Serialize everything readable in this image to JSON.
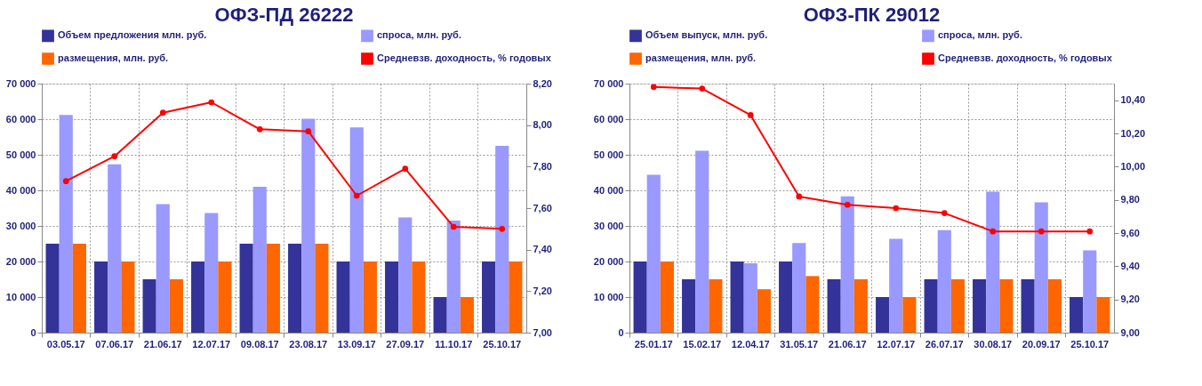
{
  "chart_data": [
    {
      "type": "bar",
      "title": "ОФЗ-ПД 26222",
      "categories": [
        "03.05.17",
        "07.06.17",
        "21.06.17",
        "12.07.17",
        "09.08.17",
        "23.08.17",
        "13.09.17",
        "27.09.17",
        "11.10.17",
        "25.10.17"
      ],
      "series": [
        {
          "name": "Объем предложения млн. руб.",
          "color": "#333399",
          "values": [
            25000,
            20000,
            15000,
            20000,
            25000,
            25000,
            20000,
            20000,
            10000,
            20000
          ]
        },
        {
          "name": "спроса, млн. руб.",
          "color": "#9999ff",
          "values": [
            61200,
            47300,
            36100,
            33600,
            41000,
            60100,
            57700,
            32400,
            31500,
            52500
          ]
        },
        {
          "name": "размещения, млн. руб.",
          "color": "#ff6600",
          "values": [
            25000,
            20000,
            15000,
            20000,
            25000,
            25000,
            20000,
            20000,
            10000,
            20000
          ]
        },
        {
          "name": "Средневзв. доходность, % годовых",
          "color": "#ff0000",
          "type": "line",
          "axis": "y2",
          "marker": "circle",
          "values": [
            7.73,
            7.85,
            8.06,
            8.11,
            7.98,
            7.97,
            7.66,
            7.79,
            7.51,
            7.5
          ]
        }
      ],
      "ylim": [
        0,
        70000
      ],
      "yticks": [
        0,
        {
          "value": 10000,
          "label": "10 000"
        },
        {
          "value": 20000,
          "label": "20 000"
        },
        {
          "value": 30000,
          "label": "30 000"
        },
        {
          "value": 40000,
          "label": "40 000"
        },
        {
          "value": 50000,
          "label": "50 000"
        },
        {
          "value": 60000,
          "label": "60 000"
        },
        {
          "value": 70000,
          "label": "70 000"
        }
      ],
      "y2lim": [
        7.0,
        8.2
      ],
      "y2ticks": [
        {
          "value": 7.0,
          "label": "7,00"
        },
        {
          "value": 7.2,
          "label": "7,20"
        },
        {
          "value": 7.4,
          "label": "7,40"
        },
        {
          "value": 7.6,
          "label": "7,60"
        },
        {
          "value": 7.8,
          "label": "7,80"
        },
        {
          "value": 8.0,
          "label": "8,00"
        },
        {
          "value": 8.2,
          "label": "8,20"
        }
      ],
      "grid": true,
      "legend": "top"
    },
    {
      "type": "bar",
      "title": "ОФЗ-ПК 29012",
      "categories": [
        "25.01.17",
        "15.02.17",
        "12.04.17",
        "31.05.17",
        "21.06.17",
        "12.07.17",
        "26.07.17",
        "30.08.17",
        "20.09.17",
        "25.10.17"
      ],
      "series": [
        {
          "name": "Объем выпуск, млн. руб.",
          "color": "#333399",
          "values": [
            20000,
            15000,
            20000,
            20000,
            15000,
            10000,
            15000,
            15000,
            15000,
            10000
          ]
        },
        {
          "name": "спроса, млн. руб.",
          "color": "#9999ff",
          "values": [
            44400,
            51100,
            19500,
            25200,
            38300,
            26400,
            28800,
            39600,
            36600,
            23100
          ]
        },
        {
          "name": "размещения, млн. руб.",
          "color": "#ff6600",
          "values": [
            20000,
            15000,
            12200,
            15900,
            15000,
            10000,
            15000,
            15000,
            15000,
            10000
          ]
        },
        {
          "name": "Средневзв. доходность, % годовых",
          "color": "#ff0000",
          "type": "line",
          "axis": "y2",
          "marker": "circle",
          "values": [
            10.48,
            10.47,
            10.31,
            9.82,
            9.77,
            9.75,
            9.72,
            9.61,
            9.61,
            9.61
          ]
        }
      ],
      "ylim": [
        0,
        70000
      ],
      "yticks": [
        0,
        {
          "value": 10000,
          "label": "10 000"
        },
        {
          "value": 20000,
          "label": "20 000"
        },
        {
          "value": 30000,
          "label": "30 000"
        },
        {
          "value": 40000,
          "label": "40 000"
        },
        {
          "value": 50000,
          "label": "50 000"
        },
        {
          "value": 60000,
          "label": "60 000"
        },
        {
          "value": 70000,
          "label": "70 000"
        }
      ],
      "y2lim": [
        9.0,
        10.5
      ],
      "y2ticks": [
        {
          "value": 9.0,
          "label": "9,00"
        },
        {
          "value": 9.2,
          "label": "9,20"
        },
        {
          "value": 9.4,
          "label": "9,40"
        },
        {
          "value": 9.6,
          "label": "9,60"
        },
        {
          "value": 9.8,
          "label": "9,80"
        },
        {
          "value": 10.0,
          "label": "10,00"
        },
        {
          "value": 10.2,
          "label": "10,20"
        },
        {
          "value": 10.4,
          "label": "10,40"
        }
      ],
      "grid": true,
      "legend": "top"
    }
  ]
}
